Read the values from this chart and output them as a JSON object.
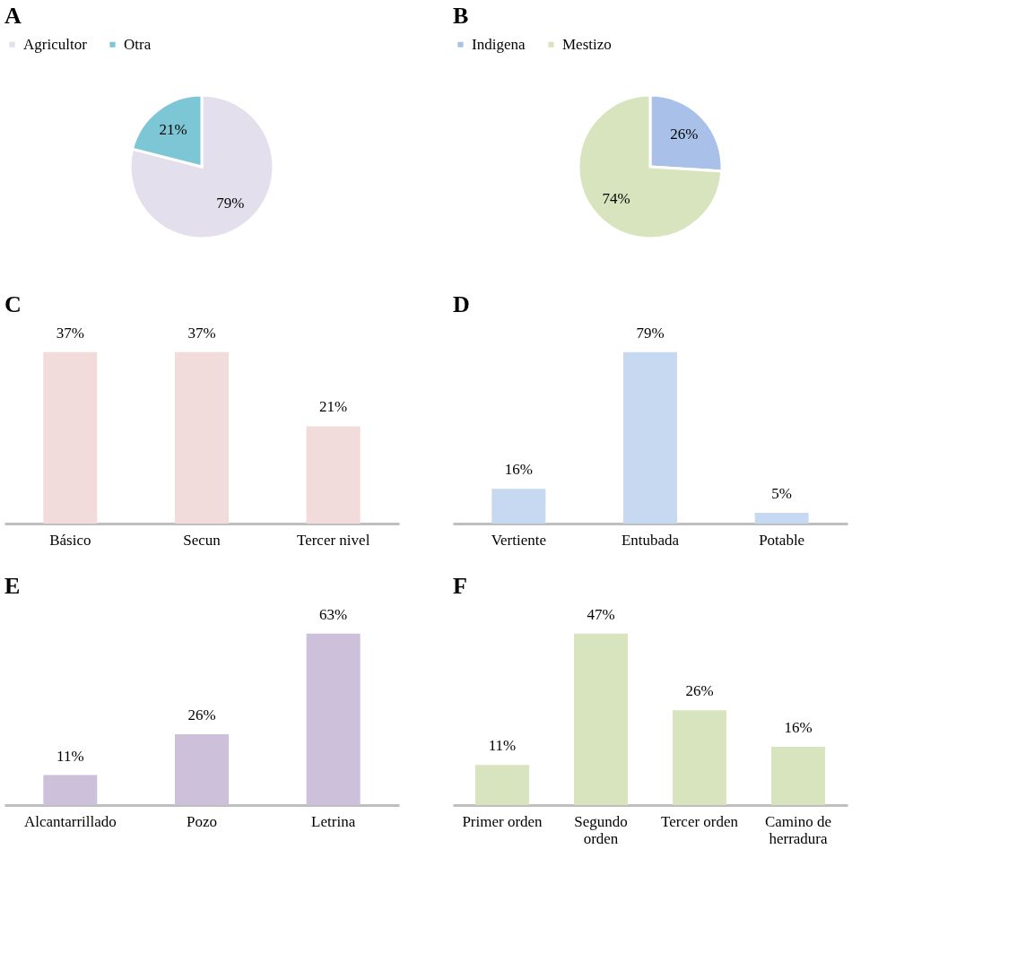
{
  "chart_data": [
    {
      "type": "pie",
      "title": "A",
      "categories": [
        "Agricultor",
        "Otra"
      ],
      "values": [
        79,
        21
      ],
      "value_labels": [
        "79%",
        "21%"
      ],
      "colors": [
        "#e4dfec",
        "#7cc6d6"
      ],
      "legend": "top"
    },
    {
      "type": "pie",
      "title": "B",
      "categories": [
        "Indigena",
        "Mestizo"
      ],
      "values": [
        26,
        74
      ],
      "value_labels": [
        "26%",
        "74%"
      ],
      "colors": [
        "#a9c1e8",
        "#d7e4bd"
      ],
      "legend": "top"
    },
    {
      "type": "bar",
      "title": "C",
      "categories": [
        "Básico",
        "Secun",
        "Tercer nivel"
      ],
      "values": [
        37,
        37,
        21
      ],
      "value_labels": [
        "37%",
        "37%",
        "21%"
      ],
      "colors": [
        "#f2dcdb",
        "#f2dcdb",
        "#f2dcdb"
      ]
    },
    {
      "type": "bar",
      "title": "D",
      "categories": [
        "Vertiente",
        "Entubada",
        "Potable"
      ],
      "values": [
        16,
        79,
        5
      ],
      "value_labels": [
        "16%",
        "79%",
        "5%"
      ],
      "colors": [
        "#c6d9f1",
        "#c6d9f1",
        "#c6d9f1"
      ]
    },
    {
      "type": "bar",
      "title": "E",
      "categories": [
        "Alcantarrillado",
        "Pozo",
        "Letrina"
      ],
      "values": [
        11,
        26,
        63
      ],
      "value_labels": [
        "11%",
        "26%",
        "63%"
      ],
      "colors": [
        "#ccc0da",
        "#ccc0da",
        "#ccc0da"
      ]
    },
    {
      "type": "bar",
      "title": "F",
      "categories": [
        "Primer orden",
        "Segundo orden",
        "Tercer orden",
        "Camino de herradura"
      ],
      "values": [
        11,
        47,
        26,
        16
      ],
      "value_labels": [
        "11%",
        "47%",
        "26%",
        "16%"
      ],
      "colors": [
        "#d7e4bd",
        "#d7e4bd",
        "#d7e4bd",
        "#d7e4bd"
      ]
    }
  ]
}
